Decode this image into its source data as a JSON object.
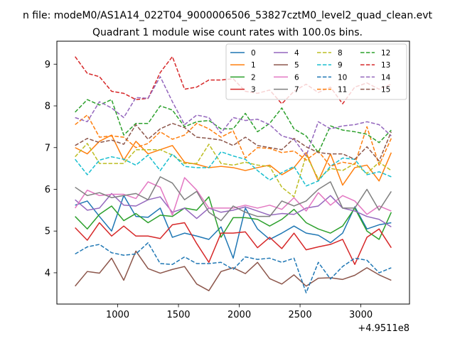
{
  "chart_data": {
    "type": "line",
    "supertitle": "n file: modeM0/AS1A14_022T04_9000006506_53827cztM0_level2_quad_clean.evt",
    "title": "Quadrant 1 module wise count rates with 100.0s bins.",
    "xlabel": "",
    "ylabel": "",
    "x_offset_label": "+4.9511e8",
    "xlim": [
      500,
      3400
    ],
    "ylim": [
      3.25,
      9.55
    ],
    "xticks": [
      1000,
      1500,
      2000,
      2500,
      3000
    ],
    "yticks": [
      4,
      5,
      6,
      7,
      8,
      9
    ],
    "grid": false,
    "legend_position": "top-right",
    "x": [
      650,
      750,
      850,
      950,
      1050,
      1150,
      1250,
      1350,
      1450,
      1550,
      1650,
      1750,
      1850,
      1950,
      2050,
      2150,
      2250,
      2350,
      2450,
      2550,
      2650,
      2750,
      2850,
      2950,
      3050,
      3150,
      3250
    ],
    "series": [
      {
        "name": "0",
        "color": "#1f77b4",
        "dash": "solid",
        "values": [
          5.62,
          5.72,
          5.35,
          5.0,
          5.85,
          5.35,
          5.33,
          5.55,
          4.85,
          4.95,
          4.88,
          4.8,
          5.1,
          4.35,
          5.55,
          5.05,
          4.8,
          4.95,
          5.12,
          4.95,
          4.9,
          4.72,
          4.95,
          5.58,
          5.05,
          5.15,
          5.2
        ]
      },
      {
        "name": "1",
        "color": "#ff7f0e",
        "dash": "solid",
        "values": [
          7.0,
          6.85,
          7.15,
          7.3,
          6.7,
          7.15,
          6.85,
          6.95,
          7.05,
          6.65,
          6.6,
          6.52,
          6.55,
          6.52,
          6.45,
          6.52,
          6.58,
          6.35,
          6.52,
          6.88,
          6.2,
          6.85,
          6.1,
          6.52,
          6.58,
          6.2,
          6.88
        ]
      },
      {
        "name": "2",
        "color": "#2ca02c",
        "dash": "solid",
        "values": [
          5.35,
          5.05,
          5.4,
          5.6,
          5.25,
          5.42,
          5.2,
          5.38,
          5.35,
          5.55,
          5.5,
          5.82,
          4.85,
          5.32,
          5.32,
          5.28,
          5.12,
          5.28,
          5.52,
          5.2,
          5.05,
          4.95,
          5.12,
          5.55,
          5.0,
          4.8,
          5.45
        ]
      },
      {
        "name": "3",
        "color": "#d62728",
        "dash": "solid",
        "values": [
          5.08,
          4.78,
          5.2,
          4.88,
          5.12,
          4.88,
          4.88,
          4.82,
          5.15,
          5.2,
          4.7,
          4.25,
          4.95,
          4.95,
          4.98,
          4.6,
          4.85,
          4.58,
          4.95,
          4.55,
          4.62,
          4.68,
          4.8,
          4.2,
          4.85,
          5.05,
          4.6
        ]
      },
      {
        "name": "4",
        "color": "#9467bd",
        "dash": "solid",
        "values": [
          5.75,
          5.5,
          5.55,
          5.9,
          5.62,
          5.6,
          5.75,
          5.82,
          5.45,
          5.55,
          5.3,
          5.55,
          5.45,
          5.5,
          5.58,
          5.48,
          5.38,
          5.42,
          5.4,
          5.55,
          5.6,
          5.85,
          5.55,
          5.48,
          5.35,
          5.28,
          5.1
        ]
      },
      {
        "name": "5",
        "color": "#8c564b",
        "dash": "solid",
        "values": [
          3.68,
          4.03,
          3.99,
          4.35,
          3.82,
          4.52,
          4.1,
          3.99,
          4.08,
          4.15,
          3.73,
          3.57,
          4.03,
          4.12,
          3.98,
          4.25,
          3.86,
          3.73,
          3.95,
          3.68,
          3.87,
          3.88,
          3.84,
          3.94,
          4.12,
          3.95,
          3.82
        ]
      },
      {
        "name": "6",
        "color": "#e377c2",
        "dash": "solid",
        "values": [
          5.55,
          5.98,
          5.85,
          5.88,
          5.88,
          5.78,
          6.18,
          6.05,
          5.38,
          6.28,
          5.98,
          5.55,
          5.55,
          5.55,
          5.62,
          5.55,
          5.62,
          5.52,
          5.8,
          5.48,
          5.92,
          5.62,
          5.85,
          5.72,
          5.4,
          5.6,
          5.48
        ]
      },
      {
        "name": "7",
        "color": "#7f7f7f",
        "dash": "solid",
        "values": [
          6.05,
          5.85,
          5.92,
          5.8,
          5.85,
          5.9,
          5.75,
          6.3,
          6.15,
          5.75,
          5.95,
          5.45,
          5.25,
          5.6,
          5.45,
          5.35,
          5.35,
          5.72,
          5.6,
          5.72,
          6.0,
          6.18,
          5.55,
          5.55,
          6.0,
          5.5,
          5.95
        ]
      },
      {
        "name": "8",
        "color": "#bcbd22",
        "dash": "dashed",
        "values": [
          6.78,
          7.1,
          6.62,
          6.62,
          6.62,
          6.95,
          6.95,
          6.95,
          6.82,
          6.62,
          6.62,
          7.08,
          6.62,
          6.58,
          6.65,
          6.58,
          6.55,
          6.05,
          5.82,
          6.82,
          6.25,
          6.5,
          6.45,
          6.62,
          6.38,
          6.65,
          6.45
        ]
      },
      {
        "name": "9",
        "color": "#17becf",
        "dash": "dashed",
        "values": [
          6.72,
          6.35,
          6.7,
          6.78,
          6.72,
          6.58,
          6.82,
          6.45,
          6.85,
          6.55,
          6.52,
          6.52,
          6.9,
          6.8,
          6.72,
          6.45,
          6.22,
          6.4,
          6.55,
          6.08,
          6.2,
          6.55,
          6.75,
          6.72,
          6.35,
          6.42,
          6.3
        ]
      },
      {
        "name": "10",
        "color": "#1f77b4",
        "dash": "dashed",
        "values": [
          4.45,
          4.62,
          4.68,
          4.48,
          4.42,
          4.45,
          4.72,
          4.22,
          4.2,
          4.38,
          4.22,
          4.22,
          4.25,
          4.08,
          4.38,
          4.32,
          4.35,
          4.25,
          4.35,
          3.52,
          4.25,
          3.85,
          4.15,
          4.35,
          4.3,
          4.0,
          4.12
        ]
      },
      {
        "name": "11",
        "color": "#ff7f0e",
        "dash": "dashed",
        "values": [
          7.55,
          7.78,
          7.25,
          7.28,
          7.25,
          7.0,
          7.1,
          7.38,
          7.2,
          7.3,
          7.58,
          7.45,
          7.25,
          7.4,
          6.75,
          7.0,
          6.98,
          6.88,
          6.92,
          6.7,
          6.92,
          6.55,
          6.65,
          6.6,
          7.5,
          6.58,
          7.22
        ]
      },
      {
        "name": "12",
        "color": "#2ca02c",
        "dash": "dashed",
        "values": [
          7.85,
          8.15,
          8.02,
          8.15,
          7.3,
          7.58,
          7.58,
          8.0,
          7.9,
          7.5,
          7.62,
          7.65,
          7.45,
          7.45,
          7.82,
          7.38,
          7.58,
          7.95,
          7.45,
          7.28,
          6.88,
          7.52,
          7.42,
          7.38,
          7.32,
          7.12,
          7.42
        ]
      },
      {
        "name": "13",
        "color": "#d62728",
        "dash": "dashed",
        "values": [
          9.18,
          8.78,
          8.7,
          8.35,
          8.3,
          8.15,
          8.18,
          8.8,
          9.18,
          8.4,
          8.45,
          8.62,
          8.62,
          8.65,
          8.35,
          8.3,
          8.38,
          8.05,
          8.35,
          8.52,
          8.32,
          8.45,
          8.05,
          8.45,
          8.55,
          8.4,
          8.52
        ]
      },
      {
        "name": "14",
        "color": "#9467bd",
        "dash": "dashed",
        "values": [
          7.72,
          7.62,
          8.1,
          7.95,
          7.72,
          8.2,
          8.18,
          8.7,
          8.1,
          7.55,
          7.78,
          7.72,
          7.35,
          7.72,
          7.65,
          7.68,
          7.55,
          7.28,
          7.2,
          6.8,
          7.62,
          7.45,
          7.52,
          7.55,
          7.62,
          7.55,
          7.28
        ]
      },
      {
        "name": "15",
        "color": "#8c564b",
        "dash": "dashed",
        "values": [
          7.05,
          7.22,
          7.12,
          7.18,
          7.08,
          7.55,
          7.2,
          7.45,
          7.58,
          7.48,
          7.25,
          7.22,
          7.18,
          7.05,
          7.25,
          7.05,
          7.0,
          6.95,
          7.22,
          7.02,
          6.88,
          6.85,
          6.85,
          6.72,
          7.02,
          6.68,
          7.38
        ]
      }
    ]
  }
}
